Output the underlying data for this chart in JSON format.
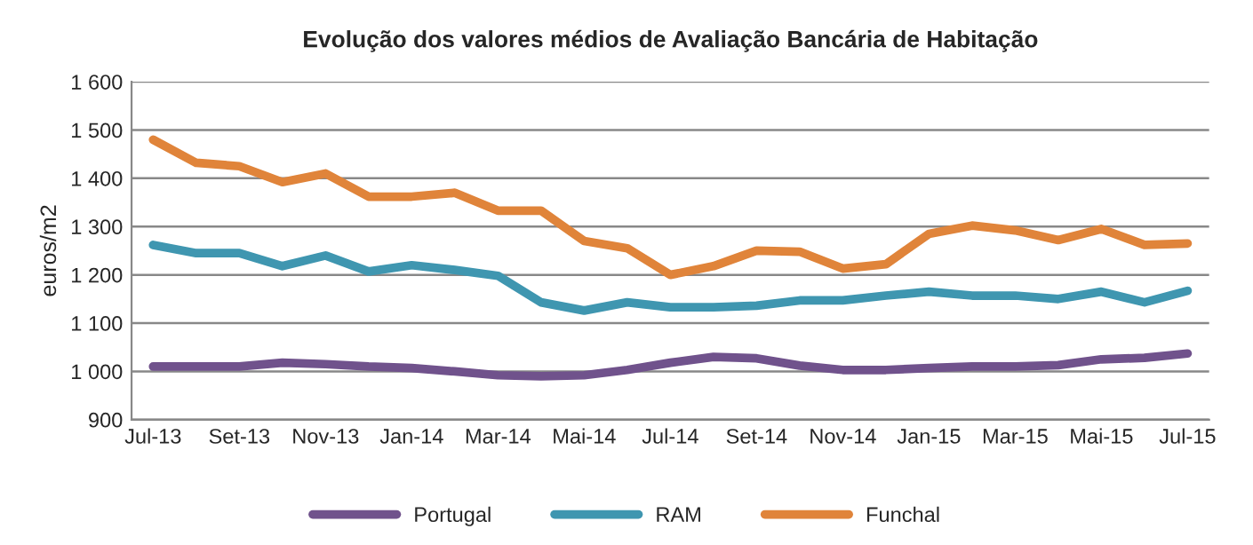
{
  "chart_data": {
    "type": "line",
    "title": "Evolução dos valores médios de Avaliação Bancária de Habitação",
    "ylabel": "euros/m2",
    "categories": [
      "Jul-13",
      null,
      "Set-13",
      null,
      "Nov-13",
      null,
      "Jan-14",
      null,
      "Mar-14",
      null,
      "Mai-14",
      null,
      "Jul-14",
      null,
      "Set-14",
      null,
      "Nov-14",
      null,
      "Jan-15",
      null,
      "Mar-15",
      null,
      "Mai-15",
      null,
      "Jul-15"
    ],
    "series": [
      {
        "name": "Portugal",
        "color": "#70528c",
        "values": [
          1010,
          1010,
          1010,
          1018,
          1015,
          1010,
          1007,
          1000,
          992,
          990,
          992,
          1003,
          1018,
          1030,
          1027,
          1012,
          1003,
          1003,
          1007,
          1010,
          1010,
          1013,
          1025,
          1028,
          1037
        ]
      },
      {
        "name": "RAM",
        "color": "#3f96b0",
        "values": [
          1262,
          1245,
          1245,
          1218,
          1240,
          1207,
          1220,
          1210,
          1198,
          1143,
          1126,
          1143,
          1133,
          1133,
          1136,
          1147,
          1147,
          1157,
          1165,
          1157,
          1157,
          1150,
          1165,
          1143,
          1167
        ]
      },
      {
        "name": "Funchal",
        "color": "#e0843a",
        "values": [
          1480,
          1432,
          1425,
          1392,
          1410,
          1362,
          1362,
          1370,
          1333,
          1333,
          1270,
          1255,
          1200,
          1218,
          1250,
          1248,
          1213,
          1222,
          1285,
          1302,
          1292,
          1272,
          1295,
          1262,
          1265
        ]
      }
    ],
    "ylim": [
      900,
      1600
    ],
    "yticks": [
      {
        "value": 900,
        "label": "900"
      },
      {
        "value": 1000,
        "label": "1 000"
      },
      {
        "value": 1100,
        "label": "1 100"
      },
      {
        "value": 1200,
        "label": "1 200"
      },
      {
        "value": 1300,
        "label": "1 300"
      },
      {
        "value": 1400,
        "label": "1 400"
      },
      {
        "value": 1500,
        "label": "1 500"
      },
      {
        "value": 1600,
        "label": "1 600"
      }
    ],
    "grid": "y",
    "legend": "bottom",
    "marker": "none",
    "line_style": "solid"
  }
}
